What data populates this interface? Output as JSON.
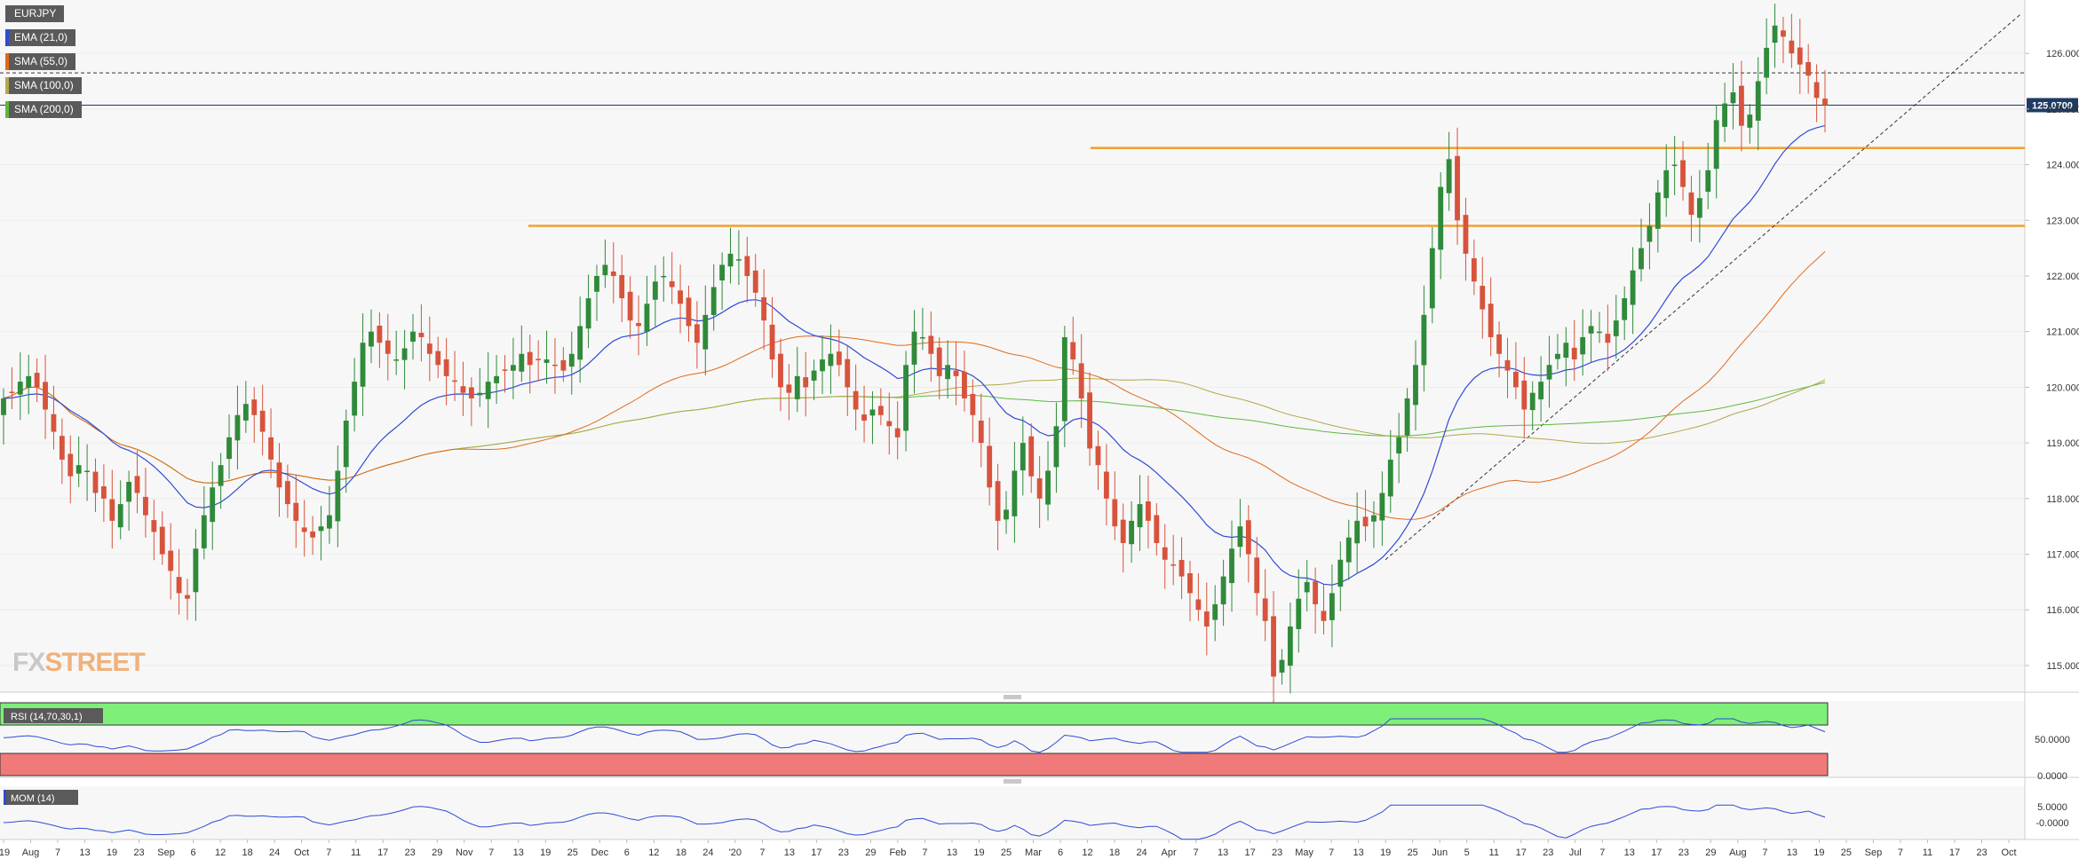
{
  "app": {
    "logo_fx": "FX",
    "logo_street": "STREET"
  },
  "legend": [
    {
      "label": "EURJPY",
      "color": "#5a5a5a"
    },
    {
      "label": "EMA (21,0)",
      "color": "#2f4bd6"
    },
    {
      "label": "SMA (55,0)",
      "color": "#e06a1c"
    },
    {
      "label": "SMA (100,0)",
      "color": "#b3a84a"
    },
    {
      "label": "SMA (200,0)",
      "color": "#5fb840"
    }
  ],
  "indicators": {
    "rsi_label": "RSI (14,70,30,1)",
    "mom_label": "MOM (14)",
    "rsi_ticks": [
      "50.0000",
      "0.0000"
    ],
    "mom_ticks": [
      "5.0000",
      "-0.0000"
    ]
  },
  "colors": {
    "bull": "#2f8a3a",
    "bear": "#d8533b",
    "ema": "#2f4bd6",
    "sma55": "#e06a1c",
    "sma100": "#b3a84a",
    "sma200": "#5fb840",
    "level": "#f0a030",
    "price_tag": "#1f3b63",
    "rsi_upper": "#7ef07a",
    "rsi_lower": "#f07a7a"
  },
  "chart_data": {
    "type": "candlestick",
    "symbol": "EURJPY",
    "last_price": "125.0700",
    "y_ticks": [
      "126.0000",
      "125.0000",
      "124.0000",
      "123.0000",
      "122.0000",
      "121.0000",
      "120.0000",
      "119.0000",
      "118.0000",
      "117.0000",
      "116.0000",
      "115.0000"
    ],
    "ylim": [
      114.6,
      126.8
    ],
    "x_ticks": [
      "'19",
      "Aug",
      "7",
      "13",
      "19",
      "23",
      "Sep",
      "6",
      "12",
      "18",
      "24",
      "Oct",
      "7",
      "11",
      "17",
      "23",
      "29",
      "Nov",
      "7",
      "13",
      "19",
      "25",
      "Dec",
      "6",
      "12",
      "18",
      "24",
      "'20",
      "7",
      "13",
      "17",
      "23",
      "29",
      "Feb",
      "7",
      "13",
      "19",
      "25",
      "Mar",
      "6",
      "12",
      "18",
      "24",
      "Apr",
      "7",
      "13",
      "17",
      "23",
      "May",
      "7",
      "13",
      "19",
      "25",
      "Jun",
      "5",
      "11",
      "17",
      "23",
      "Jul",
      "7",
      "13",
      "17",
      "23",
      "29",
      "Aug",
      "7",
      "13",
      "19",
      "25",
      "Sep",
      "7",
      "11",
      "17",
      "23",
      "Oct"
    ],
    "horizontal_levels": [
      {
        "name": "resistance",
        "value": 124.3
      },
      {
        "name": "support",
        "value": 122.9
      }
    ],
    "dashed_level": 125.65,
    "trendline": {
      "from_value": 116.9,
      "to_value": 126.7
    },
    "close": [
      119.8,
      119.9,
      120.1,
      120.2,
      120.0,
      119.6,
      119.2,
      118.7,
      118.4,
      118.6,
      118.5,
      118.1,
      118.0,
      117.6,
      117.9,
      118.3,
      118.1,
      117.7,
      117.4,
      117.0,
      116.7,
      116.3,
      116.2,
      117.1,
      117.7,
      118.2,
      118.6,
      119.1,
      119.5,
      119.7,
      119.5,
      119.2,
      118.7,
      118.2,
      117.9,
      117.6,
      117.4,
      117.3,
      117.5,
      117.7,
      118.5,
      119.4,
      120.1,
      120.8,
      121.0,
      120.8,
      120.6,
      120.5,
      120.7,
      121.0,
      120.9,
      120.6,
      120.4,
      120.2,
      120.1,
      119.9,
      119.8,
      119.9,
      120.1,
      120.2,
      120.3,
      120.4,
      120.6,
      120.4,
      120.5,
      120.5,
      120.4,
      120.3,
      120.6,
      121.1,
      121.6,
      122.0,
      122.2,
      122.0,
      121.6,
      121.2,
      121.1,
      121.5,
      121.9,
      122.0,
      121.8,
      121.5,
      121.1,
      120.8,
      121.3,
      121.8,
      122.2,
      122.4,
      122.3,
      122.0,
      121.7,
      121.2,
      120.5,
      120.0,
      119.9,
      120.2,
      120.0,
      120.3,
      120.5,
      120.6,
      120.4,
      120.0,
      119.6,
      119.4,
      119.6,
      119.5,
      119.3,
      119.1,
      120.4,
      121.0,
      120.9,
      120.6,
      120.2,
      120.4,
      120.2,
      119.8,
      119.5,
      119.0,
      118.2,
      117.6,
      117.8,
      118.5,
      119.0,
      118.4,
      118.0,
      118.5,
      119.3,
      120.9,
      120.5,
      119.8,
      118.9,
      118.6,
      118.0,
      117.5,
      117.2,
      117.6,
      117.9,
      117.6,
      117.2,
      116.9,
      116.8,
      116.6,
      116.3,
      116.0,
      115.7,
      116.1,
      116.6,
      117.1,
      117.5,
      117.0,
      116.3,
      115.8,
      114.8,
      115.1,
      115.7,
      116.2,
      116.5,
      116.1,
      115.8,
      116.3,
      116.9,
      117.3,
      117.6,
      117.5,
      117.7,
      118.1,
      118.7,
      119.1,
      119.8,
      120.4,
      121.3,
      122.5,
      123.6,
      124.1,
      123.0,
      122.4,
      121.9,
      121.4,
      120.9,
      120.6,
      120.3,
      120.0,
      119.6,
      119.9,
      120.1,
      120.4,
      120.6,
      120.8,
      120.5,
      120.9,
      121.1,
      121.0,
      120.8,
      121.2,
      121.6,
      122.1,
      122.5,
      122.9,
      123.5,
      123.9,
      124.0,
      123.6,
      123.1,
      123.4,
      123.9,
      124.8,
      125.1,
      125.3,
      124.7,
      124.9,
      125.5,
      126.1,
      126.5,
      126.3,
      126.0,
      125.8,
      125.6,
      125.2,
      125.07
    ]
  }
}
